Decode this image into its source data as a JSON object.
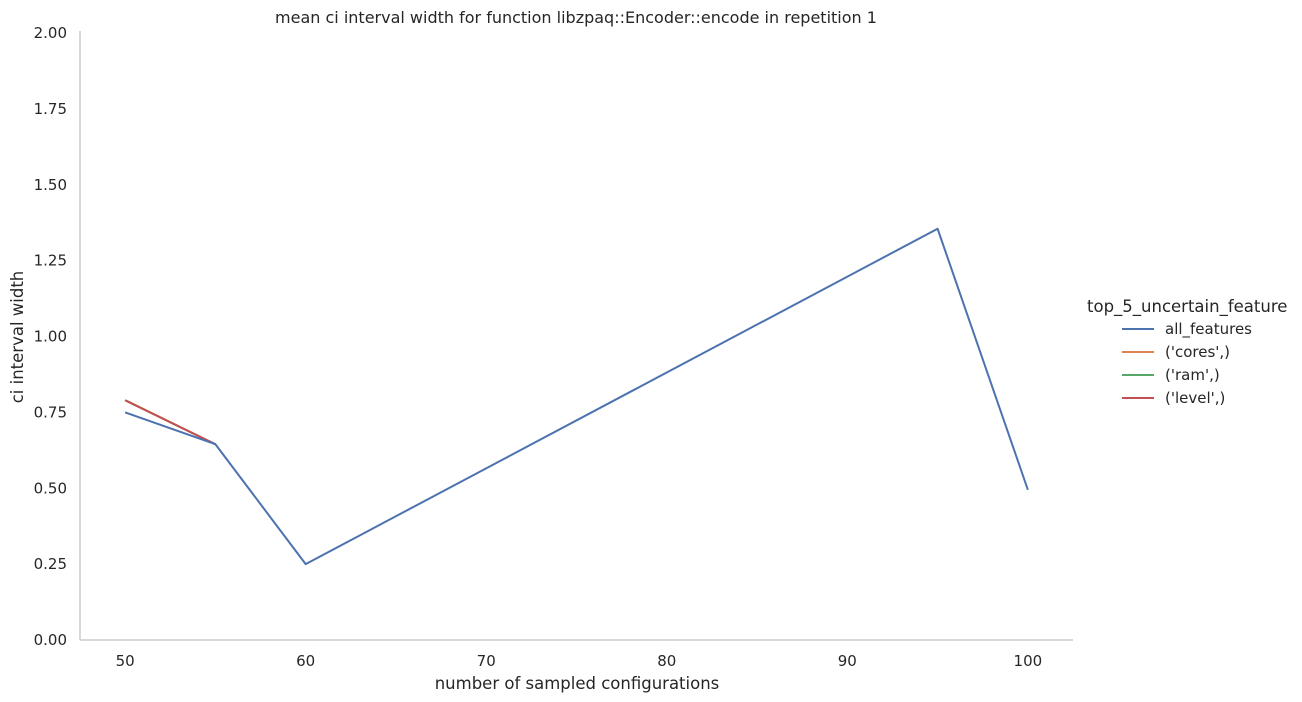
{
  "chart_data": {
    "type": "line",
    "title": "mean ci interval width for function libzpaq::Encoder::encode in repetition 1",
    "xlabel": "number of sampled configurations",
    "ylabel": "ci interval width",
    "xlim": [
      47.5,
      102.5
    ],
    "ylim": [
      0,
      2
    ],
    "xticks": [
      50,
      60,
      70,
      80,
      90,
      100
    ],
    "yticks": [
      "0.00",
      "0.25",
      "0.50",
      "0.75",
      "1.00",
      "1.25",
      "1.50",
      "1.75",
      "2.00"
    ],
    "grid": false,
    "legend": {
      "title": "top_5_uncertain_feature",
      "position": "right"
    },
    "series": [
      {
        "name": "all_features",
        "color": "#4c72b0",
        "x": [
          50,
          55,
          60,
          95,
          100
        ],
        "y": [
          0.75,
          0.645,
          0.25,
          1.355,
          0.495
        ]
      },
      {
        "name": "('cores',)",
        "color": "#dd8452",
        "x": [
          50,
          55
        ],
        "y": [
          0.79,
          0.645
        ]
      },
      {
        "name": "('ram',)",
        "color": "#55a868",
        "x": [
          50,
          55
        ],
        "y": [
          0.79,
          0.645
        ]
      },
      {
        "name": "('level',)",
        "color": "#c44e52",
        "x": [
          50,
          55
        ],
        "y": [
          0.79,
          0.645
        ]
      }
    ]
  }
}
